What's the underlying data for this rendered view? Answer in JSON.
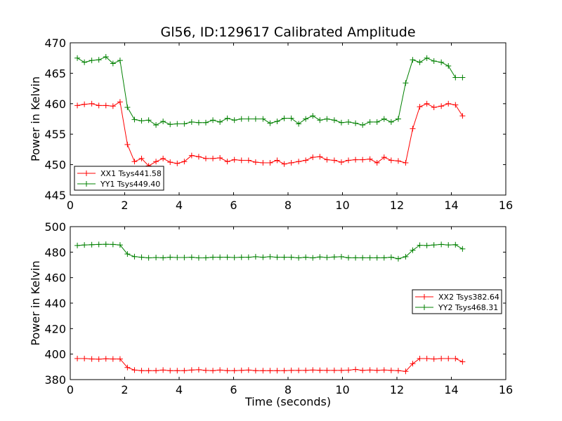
{
  "figure": {
    "title": "Gl56, ID:129617 Calibrated Amplitude"
  },
  "chart_data": [
    {
      "type": "line",
      "title": "Gl56, ID:129617 Calibrated Amplitude",
      "xlabel": "",
      "ylabel": "Power in Kelvin",
      "xlim": [
        0,
        16
      ],
      "ylim": [
        445,
        470
      ],
      "xticks": [
        "0",
        "2",
        "4",
        "6",
        "8",
        "10",
        "12",
        "14",
        "16"
      ],
      "yticks": [
        "445",
        "450",
        "455",
        "460",
        "465",
        "470"
      ],
      "grid": false,
      "legend_position": "lower-left",
      "x": [
        0.26,
        0.52,
        0.79,
        1.05,
        1.31,
        1.57,
        1.83,
        2.1,
        2.36,
        2.62,
        2.88,
        3.15,
        3.41,
        3.67,
        3.93,
        4.19,
        4.46,
        4.72,
        4.98,
        5.24,
        5.5,
        5.77,
        6.03,
        6.29,
        6.55,
        6.81,
        7.08,
        7.34,
        7.6,
        7.86,
        8.12,
        8.39,
        8.65,
        8.91,
        9.17,
        9.43,
        9.7,
        9.96,
        10.22,
        10.48,
        10.74,
        11.01,
        11.27,
        11.53,
        11.79,
        12.05,
        12.32,
        12.58,
        12.84,
        13.1,
        13.36,
        13.63,
        13.89,
        14.15,
        14.41
      ],
      "series": [
        {
          "name": "XX1 Tsys441.58",
          "color": "#ff0000",
          "values": [
            459.7,
            459.9,
            460.0,
            459.7,
            459.7,
            459.6,
            460.3,
            453.3,
            450.5,
            451.0,
            449.8,
            450.5,
            451.0,
            450.4,
            450.2,
            450.5,
            451.5,
            451.3,
            451.0,
            451.0,
            451.1,
            450.5,
            450.8,
            450.7,
            450.7,
            450.4,
            450.3,
            450.3,
            450.7,
            450.1,
            450.3,
            450.5,
            450.7,
            451.2,
            451.3,
            450.8,
            450.7,
            450.4,
            450.7,
            450.8,
            450.8,
            450.9,
            450.3,
            451.2,
            450.7,
            450.6,
            450.3,
            455.9,
            459.5,
            460.0,
            459.4,
            459.6,
            460.0,
            459.8,
            458.0
          ]
        },
        {
          "name": "YY1 Tsys449.40",
          "color": "#008000",
          "values": [
            467.5,
            466.8,
            467.1,
            467.2,
            467.7,
            466.6,
            467.1,
            459.4,
            457.4,
            457.2,
            457.3,
            456.5,
            457.1,
            456.6,
            456.7,
            456.7,
            457.0,
            456.9,
            456.9,
            457.3,
            457.0,
            457.6,
            457.3,
            457.5,
            457.5,
            457.5,
            457.5,
            456.8,
            457.1,
            457.6,
            457.6,
            456.7,
            457.5,
            458.0,
            457.3,
            457.5,
            457.3,
            456.9,
            457.0,
            456.8,
            456.5,
            457.0,
            457.0,
            457.5,
            457.0,
            457.5,
            463.4,
            467.2,
            466.8,
            467.5,
            467.0,
            466.8,
            466.2,
            464.3,
            464.3
          ]
        }
      ]
    },
    {
      "type": "line",
      "title": "",
      "xlabel": "Time (seconds)",
      "ylabel": "Power in Kelvin",
      "xlim": [
        0,
        16
      ],
      "ylim": [
        380,
        500
      ],
      "xticks": [
        "0",
        "2",
        "4",
        "6",
        "8",
        "10",
        "12",
        "14",
        "16"
      ],
      "yticks": [
        "380",
        "400",
        "420",
        "440",
        "460",
        "480",
        "500"
      ],
      "grid": false,
      "legend_position": "center-right",
      "x": [
        0.26,
        0.52,
        0.79,
        1.05,
        1.31,
        1.57,
        1.83,
        2.1,
        2.36,
        2.62,
        2.88,
        3.15,
        3.41,
        3.67,
        3.93,
        4.19,
        4.46,
        4.72,
        4.98,
        5.24,
        5.5,
        5.77,
        6.03,
        6.29,
        6.55,
        6.81,
        7.08,
        7.34,
        7.6,
        7.86,
        8.12,
        8.39,
        8.65,
        8.91,
        9.17,
        9.43,
        9.7,
        9.96,
        10.22,
        10.48,
        10.74,
        11.01,
        11.27,
        11.53,
        11.79,
        12.05,
        12.32,
        12.58,
        12.84,
        13.1,
        13.36,
        13.63,
        13.89,
        14.15,
        14.41
      ],
      "series": [
        {
          "name": "XX2 Tsys382.64",
          "color": "#ff0000",
          "values": [
            396.5,
            396.5,
            396.2,
            396.0,
            396.3,
            396.2,
            396.2,
            389.5,
            387.5,
            387.0,
            387.0,
            387.0,
            387.5,
            387.0,
            387.0,
            387.0,
            387.5,
            387.8,
            387.2,
            387.0,
            387.5,
            387.0,
            387.0,
            387.2,
            387.5,
            387.0,
            387.0,
            387.0,
            387.0,
            387.0,
            387.2,
            387.2,
            387.2,
            387.5,
            387.3,
            387.2,
            387.2,
            387.2,
            387.4,
            388.0,
            387.2,
            387.5,
            387.2,
            387.5,
            387.2,
            387.0,
            386.5,
            392.5,
            396.5,
            396.5,
            396.2,
            396.5,
            396.5,
            396.5,
            394.0
          ]
        },
        {
          "name": "YY2 Tsys468.31",
          "color": "#008000",
          "values": [
            485.2,
            485.6,
            485.8,
            486.0,
            486.2,
            486.0,
            485.6,
            478.5,
            476.5,
            476.0,
            475.5,
            475.8,
            475.6,
            476.0,
            475.8,
            475.8,
            476.0,
            475.5,
            475.6,
            476.0,
            476.0,
            476.0,
            475.8,
            476.0,
            476.0,
            476.4,
            476.0,
            476.4,
            476.0,
            476.0,
            476.0,
            475.5,
            476.0,
            475.5,
            476.2,
            475.8,
            476.2,
            476.4,
            475.6,
            475.6,
            475.6,
            475.6,
            475.6,
            475.6,
            476.0,
            474.8,
            476.4,
            481.5,
            485.4,
            485.2,
            485.6,
            486.0,
            485.6,
            485.8,
            482.5
          ]
        }
      ]
    }
  ]
}
